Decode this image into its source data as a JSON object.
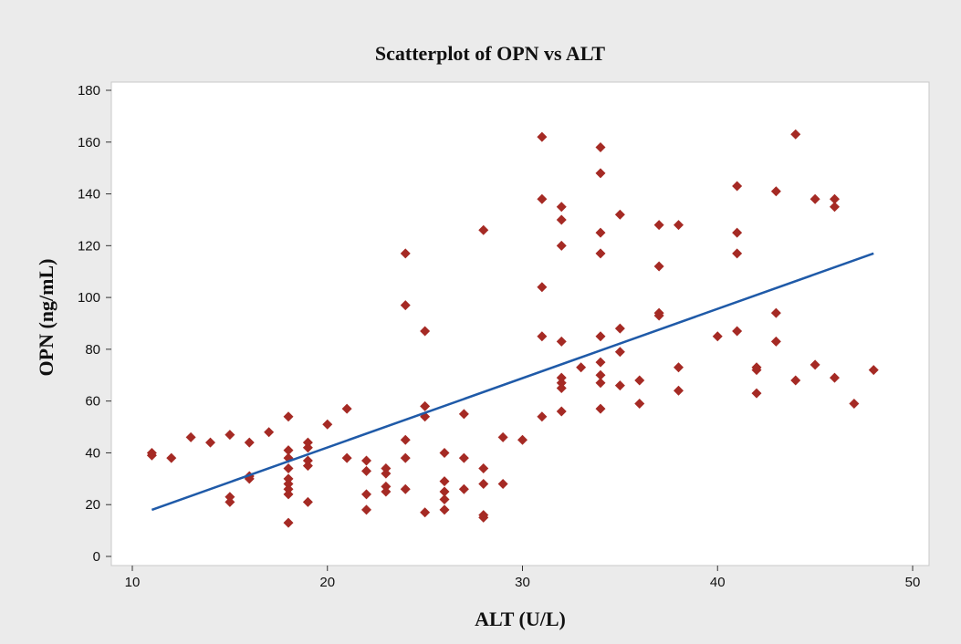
{
  "chart_data": {
    "type": "scatter",
    "title": "Scatterplot of OPN vs ALT",
    "xlabel": "ALT (U/L)",
    "ylabel": "OPN (ng/mL)",
    "xlim": [
      10,
      50
    ],
    "ylim": [
      0,
      180
    ],
    "x_ticks": [
      10,
      20,
      30,
      40,
      50
    ],
    "y_ticks": [
      0,
      20,
      40,
      60,
      80,
      100,
      120,
      140,
      160,
      180
    ],
    "grid": false,
    "legend": "none",
    "marker_color": "#a52a24",
    "line_color": "#1f5aa8",
    "series": [
      {
        "points": [
          [
            11,
            39
          ],
          [
            11,
            40
          ],
          [
            12,
            38
          ],
          [
            13,
            46
          ],
          [
            14,
            44
          ],
          [
            15,
            21
          ],
          [
            15,
            23
          ],
          [
            15,
            47
          ],
          [
            16,
            30
          ],
          [
            16,
            31
          ],
          [
            16,
            44
          ],
          [
            17,
            48
          ],
          [
            18,
            13
          ],
          [
            18,
            24
          ],
          [
            18,
            26
          ],
          [
            18,
            28
          ],
          [
            18,
            30
          ],
          [
            18,
            34
          ],
          [
            18,
            38
          ],
          [
            18,
            41
          ],
          [
            18,
            54
          ],
          [
            19,
            21
          ],
          [
            19,
            35
          ],
          [
            19,
            37
          ],
          [
            19,
            42
          ],
          [
            19,
            44
          ],
          [
            20,
            51
          ],
          [
            21,
            38
          ],
          [
            21,
            57
          ],
          [
            22,
            18
          ],
          [
            22,
            24
          ],
          [
            22,
            33
          ],
          [
            22,
            37
          ],
          [
            23,
            25
          ],
          [
            23,
            27
          ],
          [
            23,
            32
          ],
          [
            23,
            34
          ],
          [
            24,
            26
          ],
          [
            24,
            38
          ],
          [
            24,
            45
          ],
          [
            24,
            97
          ],
          [
            24,
            117
          ],
          [
            25,
            17
          ],
          [
            25,
            54
          ],
          [
            25,
            58
          ],
          [
            25,
            87
          ],
          [
            26,
            18
          ],
          [
            26,
            22
          ],
          [
            26,
            25
          ],
          [
            26,
            29
          ],
          [
            26,
            40
          ],
          [
            27,
            26
          ],
          [
            27,
            38
          ],
          [
            27,
            55
          ],
          [
            28,
            15
          ],
          [
            28,
            16
          ],
          [
            28,
            28
          ],
          [
            28,
            34
          ],
          [
            28,
            126
          ],
          [
            29,
            28
          ],
          [
            29,
            46
          ],
          [
            30,
            45
          ],
          [
            31,
            54
          ],
          [
            31,
            85
          ],
          [
            31,
            104
          ],
          [
            31,
            138
          ],
          [
            31,
            162
          ],
          [
            32,
            56
          ],
          [
            32,
            65
          ],
          [
            32,
            67
          ],
          [
            32,
            69
          ],
          [
            32,
            83
          ],
          [
            32,
            120
          ],
          [
            32,
            130
          ],
          [
            32,
            135
          ],
          [
            33,
            73
          ],
          [
            34,
            57
          ],
          [
            34,
            67
          ],
          [
            34,
            70
          ],
          [
            34,
            75
          ],
          [
            34,
            85
          ],
          [
            34,
            117
          ],
          [
            34,
            125
          ],
          [
            34,
            148
          ],
          [
            34,
            158
          ],
          [
            35,
            66
          ],
          [
            35,
            79
          ],
          [
            35,
            88
          ],
          [
            35,
            132
          ],
          [
            36,
            59
          ],
          [
            36,
            68
          ],
          [
            37,
            93
          ],
          [
            37,
            94
          ],
          [
            37,
            112
          ],
          [
            37,
            128
          ],
          [
            38,
            64
          ],
          [
            38,
            73
          ],
          [
            38,
            128
          ],
          [
            40,
            85
          ],
          [
            41,
            87
          ],
          [
            41,
            117
          ],
          [
            41,
            125
          ],
          [
            41,
            143
          ],
          [
            42,
            63
          ],
          [
            42,
            72
          ],
          [
            42,
            73
          ],
          [
            43,
            83
          ],
          [
            43,
            94
          ],
          [
            43,
            141
          ],
          [
            44,
            68
          ],
          [
            44,
            163
          ],
          [
            45,
            74
          ],
          [
            45,
            138
          ],
          [
            46,
            69
          ],
          [
            46,
            135
          ],
          [
            46,
            138
          ],
          [
            47,
            59
          ],
          [
            48,
            72
          ]
        ]
      }
    ],
    "fit_line": {
      "x": [
        11,
        48
      ],
      "y": [
        18,
        117
      ]
    }
  }
}
